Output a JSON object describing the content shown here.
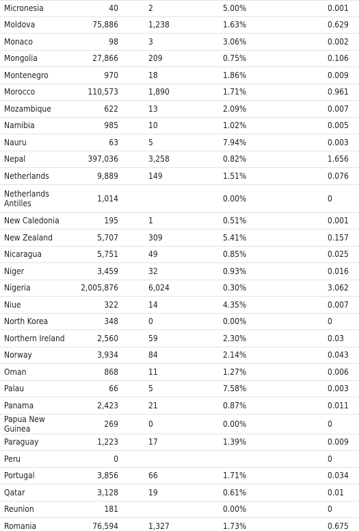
{
  "rows": [
    {
      "country": "Micronesia",
      "cases": "40",
      "deaths": "2",
      "rate": "5.00%",
      "per": "0.001"
    },
    {
      "country": "Moldova",
      "cases": "75,886",
      "deaths": "1,238",
      "rate": "1.63%",
      "per": "0.629"
    },
    {
      "country": "Monaco",
      "cases": "98",
      "deaths": "3",
      "rate": "3.06%",
      "per": "0.002"
    },
    {
      "country": "Mongolia",
      "cases": "27,866",
      "deaths": "209",
      "rate": "0.75%",
      "per": "0.106"
    },
    {
      "country": "Montenegro",
      "cases": "970",
      "deaths": "18",
      "rate": "1.86%",
      "per": "0.009"
    },
    {
      "country": "Morocco",
      "cases": "110,573",
      "deaths": "1,890",
      "rate": "1.71%",
      "per": "0.961"
    },
    {
      "country": "Mozambique",
      "cases": "622",
      "deaths": "13",
      "rate": "2.09%",
      "per": "0.007"
    },
    {
      "country": "Namibia",
      "cases": "985",
      "deaths": "10",
      "rate": "1.02%",
      "per": "0.005"
    },
    {
      "country": "Nauru",
      "cases": "63",
      "deaths": "5",
      "rate": "7.94%",
      "per": "0.003"
    },
    {
      "country": "Nepal",
      "cases": "397,036",
      "deaths": "3,258",
      "rate": "0.82%",
      "per": "1.656"
    },
    {
      "country": "Netherlands",
      "cases": "9,889",
      "deaths": "149",
      "rate": "1.51%",
      "per": "0.076"
    },
    {
      "country": "Netherlands Antilles",
      "cases": "1,014",
      "deaths": "",
      "rate": "0.00%",
      "per": "0",
      "tall": true
    },
    {
      "country": "New Caledonia",
      "cases": "195",
      "deaths": "1",
      "rate": "0.51%",
      "per": "0.001"
    },
    {
      "country": "New Zealand",
      "cases": "5,707",
      "deaths": "309",
      "rate": "5.41%",
      "per": "0.157"
    },
    {
      "country": "Nicaragua",
      "cases": "5,751",
      "deaths": "49",
      "rate": "0.85%",
      "per": "0.025"
    },
    {
      "country": "Niger",
      "cases": "3,459",
      "deaths": "32",
      "rate": "0.93%",
      "per": "0.016"
    },
    {
      "country": "Nigeria",
      "cases": "2,005,876",
      "deaths": "6,024",
      "rate": "0.30%",
      "per": "3.062"
    },
    {
      "country": "Niue",
      "cases": "322",
      "deaths": "14",
      "rate": "4.35%",
      "per": "0.007"
    },
    {
      "country": "North Korea",
      "cases": "348",
      "deaths": "0",
      "rate": "0.00%",
      "per": "0"
    },
    {
      "country": "Northern Ireland",
      "cases": "2,560",
      "deaths": "59",
      "rate": "2.30%",
      "per": "0.03"
    },
    {
      "country": "Norway",
      "cases": "3,934",
      "deaths": "84",
      "rate": "2.14%",
      "per": "0.043"
    },
    {
      "country": "Oman",
      "cases": "868",
      "deaths": "11",
      "rate": "1.27%",
      "per": "0.006"
    },
    {
      "country": "Palau",
      "cases": "66",
      "deaths": "5",
      "rate": "7.58%",
      "per": "0.003"
    },
    {
      "country": "Panama",
      "cases": "2,423",
      "deaths": "21",
      "rate": "0.87%",
      "per": "0.011"
    },
    {
      "country": "Papua New Guinea",
      "cases": "269",
      "deaths": "0",
      "rate": "0.00%",
      "per": "0"
    },
    {
      "country": "Paraguay",
      "cases": "1,223",
      "deaths": "17",
      "rate": "1.39%",
      "per": "0.009"
    },
    {
      "country": "Peru",
      "cases": "0",
      "deaths": "",
      "rate": "",
      "per": "0"
    },
    {
      "country": "Portugal",
      "cases": "3,856",
      "deaths": "66",
      "rate": "1.71%",
      "per": "0.034"
    },
    {
      "country": "Qatar",
      "cases": "3,128",
      "deaths": "19",
      "rate": "0.61%",
      "per": "0.01"
    },
    {
      "country": "Reunion",
      "cases": "181",
      "deaths": "",
      "rate": "0.00%",
      "per": "0"
    },
    {
      "country": "Romania",
      "cases": "76,594",
      "deaths": "1,327",
      "rate": "1.73%",
      "per": "0.675"
    }
  ]
}
